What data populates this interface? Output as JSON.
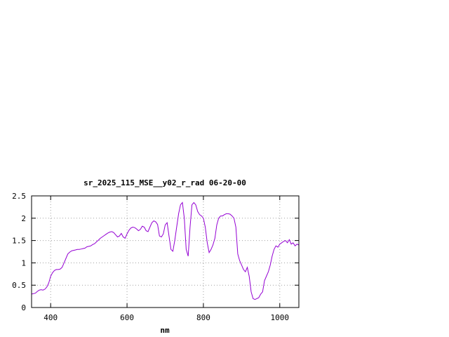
{
  "chart_data": {
    "type": "line",
    "title": "sr_2025_115_MSE__y02_r_rad 06-20-00",
    "xlabel": "nm",
    "ylabel": "",
    "xlim": [
      350,
      1050
    ],
    "ylim": [
      0,
      2.5
    ],
    "x_ticks": [
      400,
      600,
      800,
      1000
    ],
    "x_tick_labels": [
      "400",
      "600",
      "800",
      "1000"
    ],
    "y_ticks": [
      0,
      0.5,
      1,
      1.5,
      2,
      2.5
    ],
    "y_tick_labels": [
      "0",
      "0.5",
      "1",
      "1.5",
      "2",
      "2.5"
    ],
    "grid": true,
    "line_color": "#9400d3",
    "series": [
      {
        "x": [
          350,
          360,
          365,
          370,
          375,
          380,
          385,
          390,
          395,
          400,
          405,
          410,
          415,
          420,
          425,
          430,
          435,
          440,
          445,
          450,
          455,
          460,
          465,
          470,
          475,
          480,
          485,
          490,
          495,
          500,
          505,
          510,
          515,
          520,
          525,
          530,
          535,
          540,
          545,
          550,
          555,
          560,
          565,
          570,
          575,
          580,
          585,
          590,
          595,
          600,
          605,
          610,
          615,
          620,
          625,
          630,
          635,
          640,
          645,
          650,
          655,
          660,
          665,
          670,
          675,
          680,
          685,
          690,
          695,
          700,
          705,
          710,
          715,
          720,
          725,
          730,
          735,
          740,
          745,
          750,
          755,
          760,
          765,
          770,
          775,
          780,
          785,
          790,
          795,
          800,
          805,
          810,
          815,
          820,
          825,
          830,
          835,
          840,
          845,
          850,
          855,
          860,
          865,
          870,
          875,
          880,
          885,
          890,
          895,
          900,
          905,
          910,
          915,
          920,
          925,
          930,
          935,
          940,
          945,
          950,
          955,
          960,
          965,
          970,
          975,
          980,
          985,
          990,
          995,
          1000,
          1005,
          1010,
          1015,
          1020,
          1025,
          1030,
          1035,
          1040,
          1045,
          1050
        ],
        "y": [
          0.3,
          0.32,
          0.36,
          0.39,
          0.4,
          0.39,
          0.41,
          0.46,
          0.55,
          0.7,
          0.78,
          0.83,
          0.85,
          0.85,
          0.86,
          0.9,
          1.0,
          1.1,
          1.2,
          1.24,
          1.27,
          1.28,
          1.29,
          1.3,
          1.3,
          1.31,
          1.32,
          1.33,
          1.36,
          1.37,
          1.38,
          1.41,
          1.43,
          1.47,
          1.51,
          1.55,
          1.58,
          1.61,
          1.64,
          1.67,
          1.69,
          1.7,
          1.68,
          1.63,
          1.58,
          1.6,
          1.66,
          1.58,
          1.55,
          1.65,
          1.73,
          1.78,
          1.8,
          1.79,
          1.76,
          1.72,
          1.75,
          1.82,
          1.8,
          1.72,
          1.7,
          1.8,
          1.9,
          1.94,
          1.92,
          1.86,
          1.6,
          1.58,
          1.65,
          1.85,
          1.9,
          1.6,
          1.3,
          1.26,
          1.5,
          1.8,
          2.1,
          2.3,
          2.35,
          2.0,
          1.3,
          1.15,
          1.8,
          2.3,
          2.35,
          2.3,
          2.15,
          2.08,
          2.05,
          2.0,
          1.8,
          1.45,
          1.23,
          1.3,
          1.4,
          1.55,
          1.85,
          2.0,
          2.05,
          2.05,
          2.08,
          2.1,
          2.1,
          2.09,
          2.05,
          2.0,
          1.8,
          1.2,
          1.05,
          0.95,
          0.85,
          0.8,
          0.9,
          0.7,
          0.35,
          0.2,
          0.18,
          0.2,
          0.22,
          0.3,
          0.35,
          0.6,
          0.7,
          0.8,
          0.95,
          1.15,
          1.3,
          1.38,
          1.35,
          1.42,
          1.45,
          1.48,
          1.5,
          1.45,
          1.52,
          1.42,
          1.45,
          1.38,
          1.42,
          1.4
        ]
      }
    ]
  }
}
